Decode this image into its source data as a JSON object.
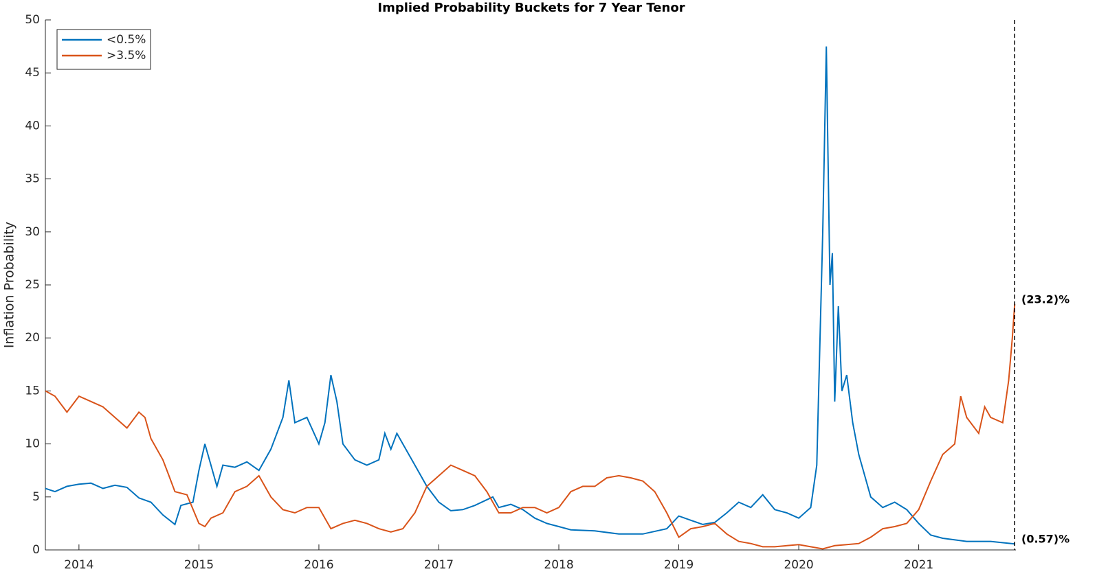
{
  "chart_data": {
    "type": "line",
    "title": "Implied Probability Buckets for 7 Year Tenor",
    "y_label": "Inflation Probability",
    "xlim": [
      2013.72,
      2021.81
    ],
    "xticks": [
      2014,
      2015,
      2016,
      2017,
      2018,
      2019,
      2020,
      2021
    ],
    "ylim": [
      0,
      50
    ],
    "yticks": [
      0,
      5,
      10,
      15,
      20,
      25,
      30,
      35,
      40,
      45,
      50
    ],
    "legend": "top-left",
    "series": [
      {
        "name": "<0.5%",
        "color": "#0072bd",
        "x": [
          2013.72,
          2013.8,
          2013.9,
          2014.0,
          2014.1,
          2014.2,
          2014.3,
          2014.4,
          2014.5,
          2014.6,
          2014.7,
          2014.8,
          2014.85,
          2014.95,
          2015.0,
          2015.05,
          2015.1,
          2015.15,
          2015.2,
          2015.3,
          2015.4,
          2015.5,
          2015.6,
          2015.7,
          2015.75,
          2015.8,
          2015.9,
          2016.0,
          2016.05,
          2016.1,
          2016.15,
          2016.2,
          2016.3,
          2016.4,
          2016.5,
          2016.55,
          2016.6,
          2016.65,
          2016.7,
          2016.8,
          2016.9,
          2017.0,
          2017.1,
          2017.2,
          2017.3,
          2017.45,
          2017.5,
          2017.6,
          2017.7,
          2017.8,
          2017.9,
          2018.0,
          2018.1,
          2018.3,
          2018.5,
          2018.7,
          2018.9,
          2019.0,
          2019.1,
          2019.2,
          2019.3,
          2019.4,
          2019.5,
          2019.6,
          2019.7,
          2019.8,
          2019.9,
          2020.0,
          2020.1,
          2020.15,
          2020.2,
          2020.23,
          2020.26,
          2020.28,
          2020.3,
          2020.33,
          2020.36,
          2020.4,
          2020.45,
          2020.5,
          2020.55,
          2020.6,
          2020.7,
          2020.8,
          2020.9,
          2021.0,
          2021.1,
          2021.2,
          2021.4,
          2021.6,
          2021.8
        ],
        "values": [
          5.8,
          5.5,
          6.0,
          6.2,
          6.3,
          5.8,
          6.1,
          5.9,
          4.9,
          4.5,
          3.3,
          2.4,
          4.2,
          4.5,
          7.5,
          10.0,
          8.0,
          6.0,
          8.0,
          7.8,
          8.3,
          7.5,
          9.5,
          12.5,
          16.0,
          12.0,
          12.5,
          10.0,
          12.0,
          16.5,
          14.0,
          10.0,
          8.5,
          8.0,
          8.5,
          11.0,
          9.5,
          11.0,
          10.0,
          8.0,
          6.0,
          4.5,
          3.7,
          3.8,
          4.2,
          5.0,
          4.0,
          4.3,
          3.8,
          3.0,
          2.5,
          2.2,
          1.9,
          1.8,
          1.5,
          1.5,
          2.0,
          3.2,
          2.8,
          2.4,
          2.6,
          3.5,
          4.5,
          4.0,
          5.2,
          3.8,
          3.5,
          3.0,
          4.0,
          8.0,
          30.0,
          47.5,
          25.0,
          28.0,
          14.0,
          23.0,
          15.0,
          16.5,
          12.0,
          9.0,
          7.0,
          5.0,
          4.0,
          4.5,
          3.8,
          2.5,
          1.4,
          1.1,
          0.8,
          0.8,
          0.57
        ]
      },
      {
        "name": ">3.5%",
        "color": "#d95319",
        "x": [
          2013.72,
          2013.8,
          2013.9,
          2014.0,
          2014.1,
          2014.2,
          2014.3,
          2014.4,
          2014.5,
          2014.55,
          2014.6,
          2014.7,
          2014.75,
          2014.8,
          2014.9,
          2015.0,
          2015.05,
          2015.1,
          2015.2,
          2015.3,
          2015.4,
          2015.5,
          2015.6,
          2015.7,
          2015.8,
          2015.9,
          2016.0,
          2016.1,
          2016.2,
          2016.3,
          2016.4,
          2016.5,
          2016.6,
          2016.7,
          2016.8,
          2016.9,
          2017.0,
          2017.1,
          2017.2,
          2017.3,
          2017.4,
          2017.5,
          2017.6,
          2017.7,
          2017.8,
          2017.9,
          2018.0,
          2018.1,
          2018.2,
          2018.3,
          2018.4,
          2018.5,
          2018.6,
          2018.7,
          2018.8,
          2018.9,
          2019.0,
          2019.1,
          2019.2,
          2019.3,
          2019.4,
          2019.5,
          2019.6,
          2019.7,
          2019.8,
          2019.9,
          2020.0,
          2020.1,
          2020.2,
          2020.3,
          2020.4,
          2020.5,
          2020.6,
          2020.7,
          2020.8,
          2020.9,
          2021.0,
          2021.1,
          2021.2,
          2021.3,
          2021.35,
          2021.4,
          2021.5,
          2021.55,
          2021.6,
          2021.7,
          2021.75,
          2021.78,
          2021.8
        ],
        "values": [
          15.0,
          14.5,
          13.0,
          14.5,
          14.0,
          13.5,
          12.5,
          11.5,
          13.0,
          12.5,
          10.5,
          8.5,
          7.0,
          5.5,
          5.2,
          2.5,
          2.2,
          3.0,
          3.5,
          5.5,
          6.0,
          7.0,
          5.0,
          3.8,
          3.5,
          4.0,
          4.0,
          2.0,
          2.5,
          2.8,
          2.5,
          2.0,
          1.7,
          2.0,
          3.5,
          6.0,
          7.0,
          8.0,
          7.5,
          7.0,
          5.5,
          3.5,
          3.5,
          4.0,
          4.0,
          3.5,
          4.0,
          5.5,
          6.0,
          6.0,
          6.8,
          7.0,
          6.8,
          6.5,
          5.5,
          3.5,
          1.2,
          2.0,
          2.2,
          2.5,
          1.5,
          0.8,
          0.6,
          0.3,
          0.3,
          0.4,
          0.5,
          0.3,
          0.1,
          0.4,
          0.5,
          0.6,
          1.2,
          2.0,
          2.2,
          2.5,
          3.8,
          6.5,
          9.0,
          10.0,
          14.5,
          12.5,
          11.0,
          13.5,
          12.5,
          12.0,
          16.0,
          20.0,
          23.2
        ]
      }
    ],
    "annotations": [
      {
        "text": "(23.2)%",
        "value": 23.2
      },
      {
        "text": "(0.57)%",
        "value": 0.57
      }
    ]
  }
}
